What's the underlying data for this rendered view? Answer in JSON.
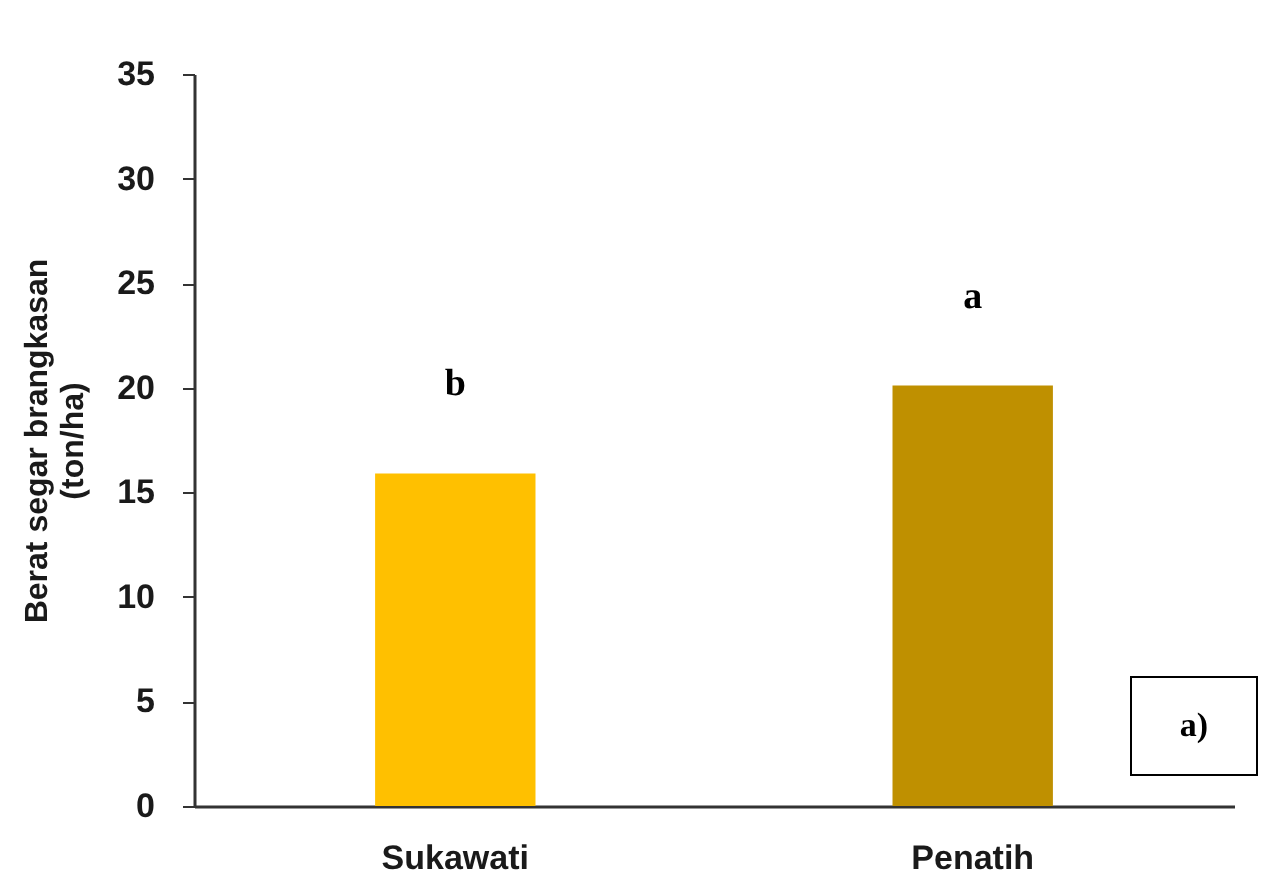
{
  "chart_data": {
    "type": "bar",
    "ylabel": "Berat segar brangkasan\n(ton/ha)",
    "categories": [
      "Sukawati",
      "Penatih"
    ],
    "colors": [
      "#ffc000",
      "#bf9000"
    ],
    "values": [
      15.9,
      20.1
    ],
    "ylim": [
      0,
      35
    ],
    "yticks": [
      0,
      5,
      10,
      15,
      20,
      25,
      30,
      35
    ],
    "grid": false,
    "annotations": [
      "b",
      "a",
      "a)"
    ]
  }
}
